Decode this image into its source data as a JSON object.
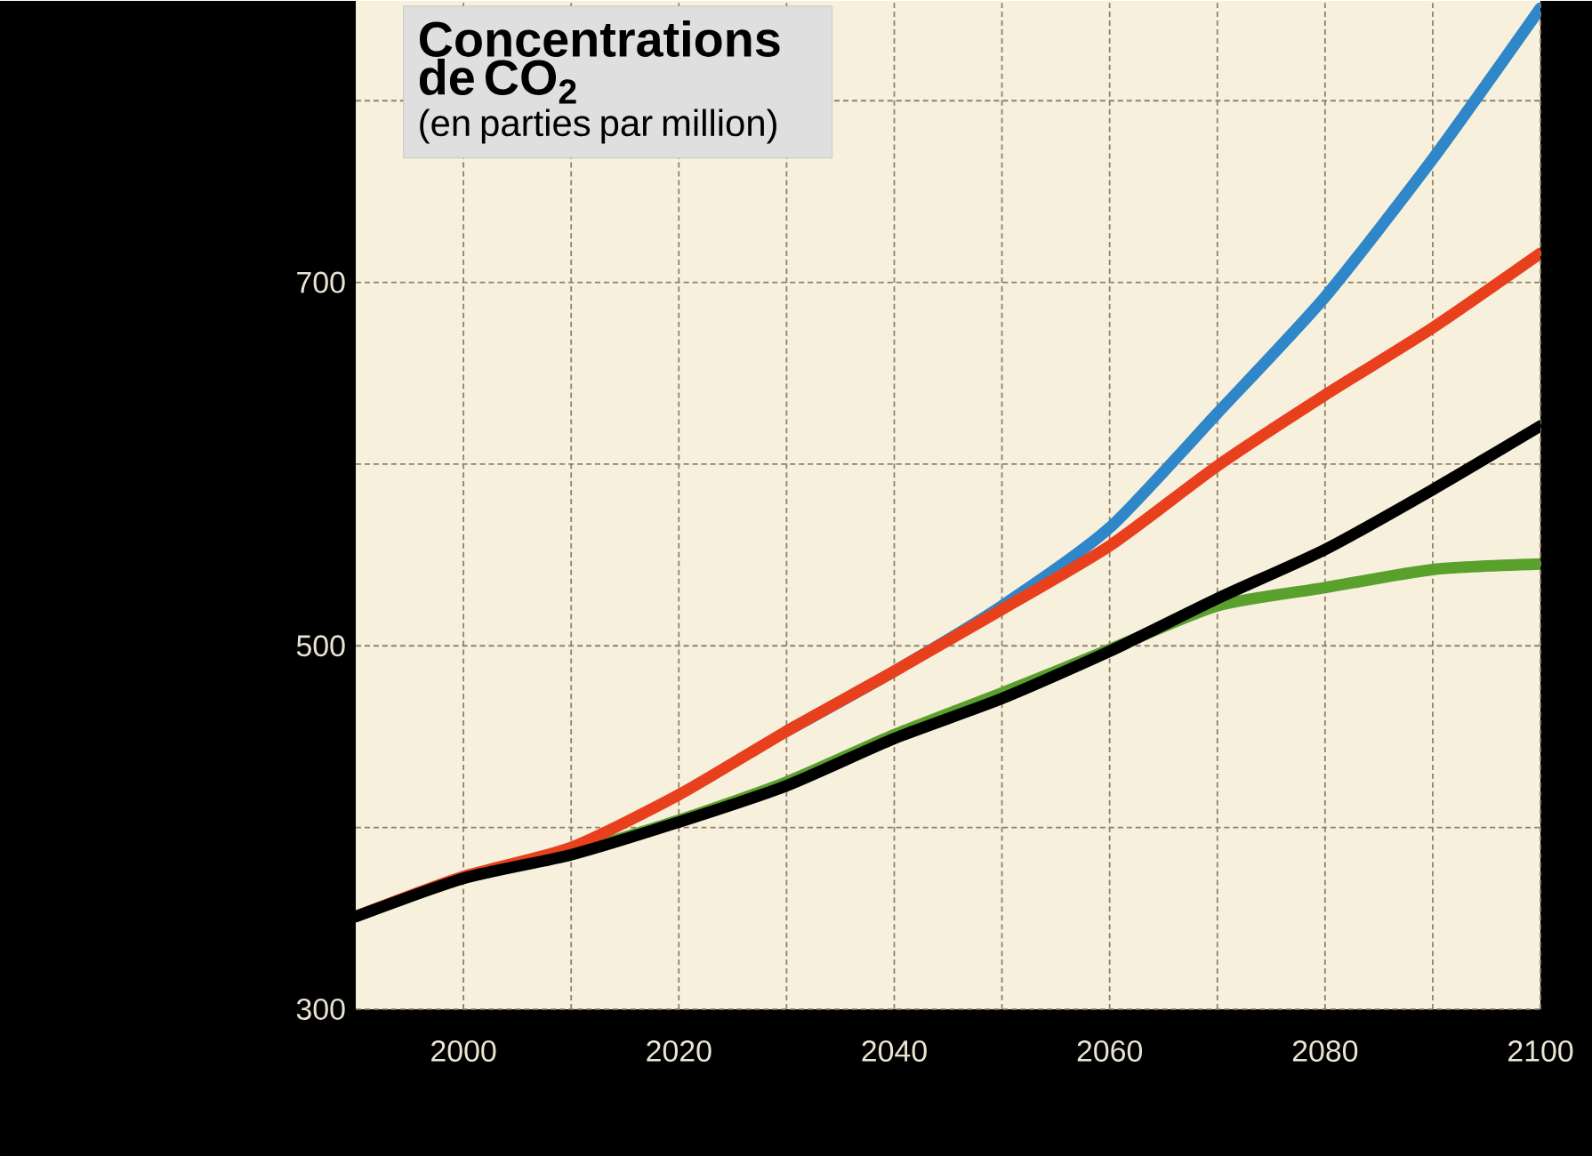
{
  "chart_data": {
    "type": "line",
    "title": "Concentrations de CO$_{2}$",
    "subtitle": "(en parties par million)",
    "x": [
      1990,
      2000,
      2010,
      2020,
      2030,
      2040,
      2050,
      2060,
      2070,
      2080,
      2090,
      2100
    ],
    "xlim": [
      1990,
      2100
    ],
    "ylim": [
      300,
      855
    ],
    "xticks": [
      2000,
      {
        "value": 2010,
        "label": null
      },
      2020,
      {
        "value": 2030,
        "label": null
      },
      2040,
      {
        "value": 2050,
        "label": null
      },
      2060,
      {
        "value": 2070,
        "label": null
      },
      2080,
      {
        "value": 2090,
        "label": null
      },
      2100
    ],
    "yticks": [
      300,
      {
        "value": 400,
        "label": null
      },
      500,
      {
        "value": 600,
        "label": null
      },
      700,
      {
        "value": 800,
        "label": null
      }
    ],
    "grid": true,
    "line_style": "solid",
    "marker": "none",
    "series": [
      {
        "color": "#2f86c8",
        "values": [
          null,
          null,
          null,
          null,
          453,
          486,
          522,
          565,
          628,
          692,
          768,
          851
        ]
      },
      {
        "color": "#5aa02c",
        "values": [
          351,
          372,
          386,
          404,
          425,
          451,
          474,
          498,
          522,
          532,
          542,
          545
        ]
      },
      {
        "color": "#e8401c",
        "values": [
          351,
          373,
          389,
          418,
          453,
          486,
          520,
          555,
          599,
          638,
          675,
          716
        ]
      },
      {
        "color": "#000000",
        "values": [
          351,
          372,
          385,
          403,
          423,
          449,
          471,
          497,
          526,
          553,
          586,
          621
        ]
      }
    ]
  }
}
